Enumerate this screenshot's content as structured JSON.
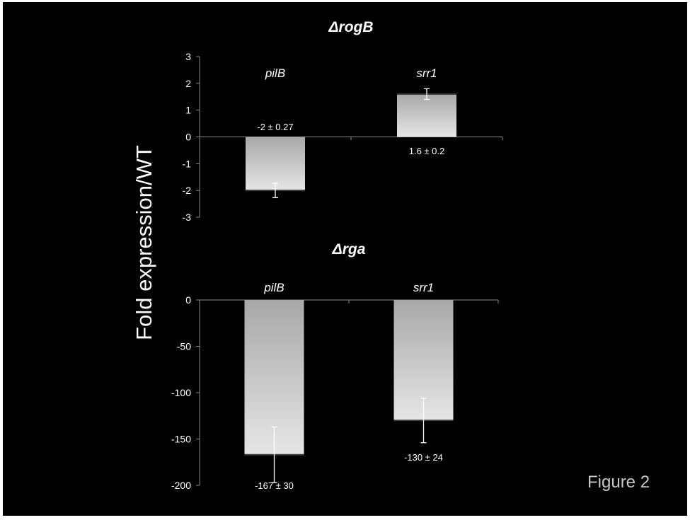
{
  "slide": {
    "ylabel": "Fold expression/WT",
    "figure_label": "Figure 2",
    "background": "#000000",
    "text_color": "#ffffff",
    "bar_color_top": "#a8a8a8",
    "bar_color_bottom": "#e6e6e6"
  },
  "chart_data": [
    {
      "type": "bar",
      "title": "ΔrogB",
      "categories": [
        "pilB",
        "srr1"
      ],
      "values": [
        -2,
        1.6
      ],
      "errors": [
        0.27,
        0.2
      ],
      "data_labels": [
        "-2 ± 0.27",
        "1.6 ± 0.2"
      ],
      "ylim": [
        -3,
        3
      ],
      "yticks": [
        3,
        2,
        1,
        0,
        -1,
        -2,
        -3
      ],
      "xlabel": "",
      "ylabel": "Fold expression/WT",
      "grid": false
    },
    {
      "type": "bar",
      "title": "Δrga",
      "categories": [
        "pilB",
        "srr1"
      ],
      "values": [
        -167,
        -130
      ],
      "errors": [
        30,
        24
      ],
      "data_labels": [
        "-167 ± 30",
        "-130 ± 24"
      ],
      "ylim": [
        -200,
        0
      ],
      "yticks": [
        0,
        -50,
        -100,
        -150,
        -200
      ],
      "xlabel": "",
      "ylabel": "Fold expression/WT",
      "grid": false
    }
  ]
}
